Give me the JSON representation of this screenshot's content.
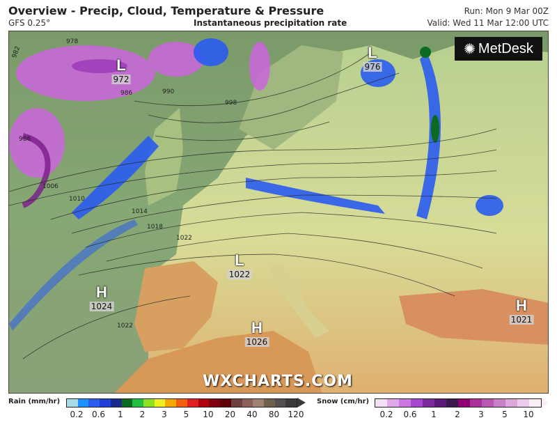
{
  "header": {
    "title": "Overview - Precip, Cloud, Temperature & Pressure",
    "model": "GFS 0.25°",
    "subtitle": "Instantaneous precipitation rate",
    "run": "Run: Mon 9 Mar 00Z",
    "valid": "Valid: Wed 11 Mar 12:00 UTC"
  },
  "map": {
    "logo": "MetDesk",
    "watermark": "WXCHARTS.COM",
    "pressure_centers": [
      {
        "type": "L",
        "value": "972"
      },
      {
        "type": "L",
        "value": "976"
      },
      {
        "type": "L",
        "value": "1022"
      },
      {
        "type": "H",
        "value": "1024"
      },
      {
        "type": "H",
        "value": "1026"
      },
      {
        "type": "H",
        "value": "1021"
      }
    ],
    "isobar_labels": [
      "982",
      "978",
      "986",
      "990",
      "998",
      "986",
      "1006",
      "1010",
      "1014",
      "1018",
      "1022",
      "1022"
    ]
  },
  "legend": {
    "rain": {
      "label": "Rain (mm/hr)",
      "ticks": [
        "0.2",
        "0.6",
        "1",
        "2",
        "3",
        "5",
        "10",
        "20",
        "40",
        "80",
        "120"
      ],
      "colors": [
        "#a8dbe6",
        "#1e90ff",
        "#2a5cf0",
        "#1f3fd8",
        "#1a2a8c",
        "#0a6a20",
        "#22c040",
        "#8ee020",
        "#f0f020",
        "#f5a800",
        "#f06010",
        "#e02020",
        "#b00010",
        "#800010",
        "#600008",
        "#704040",
        "#8a6058",
        "#a08070",
        "#706050",
        "#555050",
        "#3a3a3a"
      ]
    },
    "snow": {
      "label": "Snow (cm/hr)",
      "ticks": [
        "0.2",
        "0.6",
        "1",
        "2",
        "3",
        "5",
        "10"
      ],
      "colors": [
        "#f4e0f4",
        "#e0a8e8",
        "#c878e0",
        "#a848d0",
        "#7a2a9a",
        "#5a1a7a",
        "#3a1a4a",
        "#900070",
        "#a83098",
        "#b858b0",
        "#c880c8",
        "#dca8dc",
        "#ecccec",
        "#f8eef8"
      ]
    }
  }
}
